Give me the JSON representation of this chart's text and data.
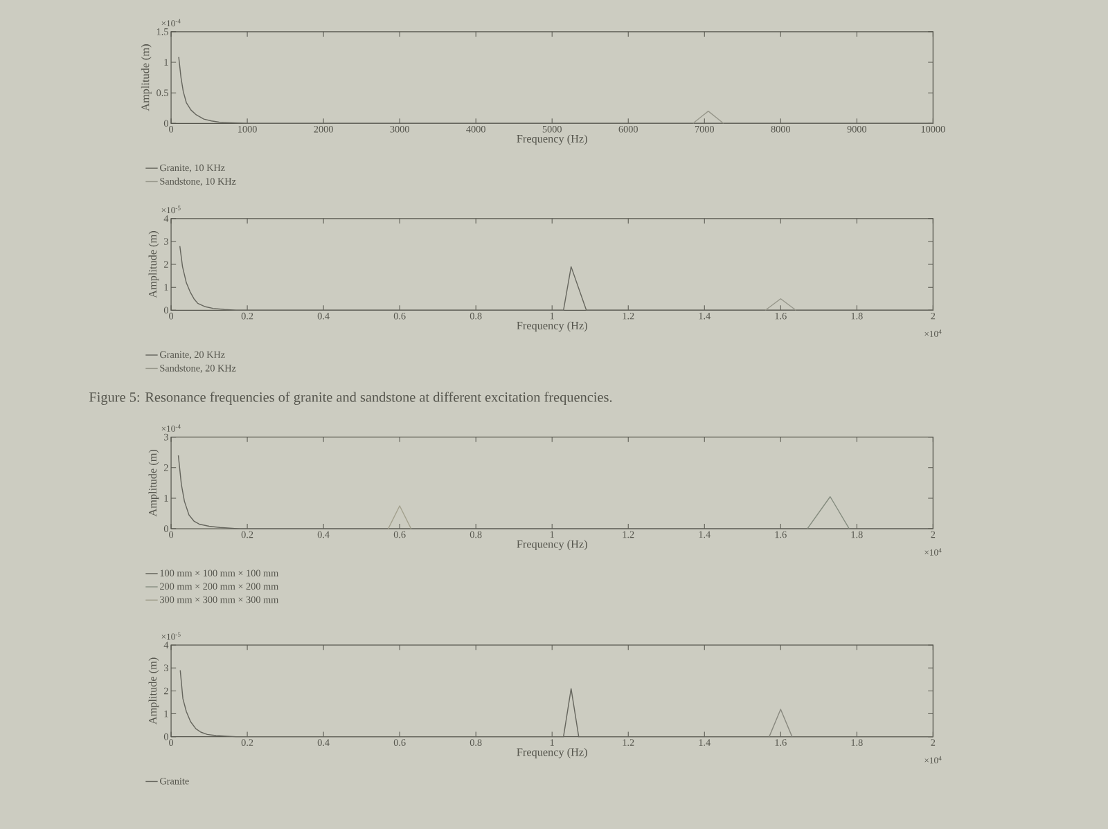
{
  "chart_data": [
    {
      "type": "line",
      "xlabel": "Frequency (Hz)",
      "ylabel": "Amplitude (m)",
      "xlim": [
        0,
        10000
      ],
      "xticks": [
        0,
        1000,
        2000,
        3000,
        4000,
        5000,
        6000,
        7000,
        8000,
        9000,
        10000
      ],
      "ylim": [
        0,
        1.5
      ],
      "yticks": [
        0,
        0.5,
        1,
        1.5
      ],
      "legend": "bottom left",
      "annotations": [
        "×10$^{-4}$"
      ],
      "series": [
        {
          "name": "Granite, 10 KHz",
          "color": "#66665e",
          "x": [
            100,
            130,
            160,
            200,
            260,
            330,
            430,
            530,
            630,
            800,
            1000,
            10000
          ],
          "values": [
            1.09,
            0.75,
            0.52,
            0.34,
            0.22,
            0.14,
            0.07,
            0.04,
            0.02,
            0.01,
            0,
            0
          ]
        },
        {
          "name": "Sandstone, 10 KHz",
          "color": "#97978b",
          "x": [
            6850,
            7050,
            7250
          ],
          "values": [
            0,
            0.2,
            0
          ]
        }
      ]
    },
    {
      "type": "line",
      "xlabel": "Frequency (Hz)",
      "ylabel": "Amplitude (m)",
      "xlim": [
        0,
        2
      ],
      "xticks": [
        0,
        0.2,
        0.4,
        0.6,
        0.8,
        1,
        1.2,
        1.4,
        1.6,
        1.8,
        2
      ],
      "ylim": [
        0,
        4
      ],
      "yticks": [
        0,
        1,
        2,
        3,
        4
      ],
      "legend": "bottom left",
      "annotations": [
        "×10$^{-5}$",
        "×10$^{4}$",
        "Figure 5: Resonance frequencies of granite and sandstone at different excitation frequencies."
      ],
      "series": [
        {
          "name": "Granite, 20 KHz",
          "color": "#66665e",
          "x": [
            0.023,
            0.03,
            0.04,
            0.05,
            0.06,
            0.07,
            0.09,
            0.11,
            0.14,
            0.17,
            1.03,
            1.05,
            1.09,
            2
          ],
          "values": [
            2.8,
            1.9,
            1.2,
            0.8,
            0.5,
            0.3,
            0.15,
            0.08,
            0.03,
            0,
            0,
            1.9,
            0,
            0
          ]
        },
        {
          "name": "Sandstone, 20 KHz",
          "color": "#97978b",
          "x": [
            1.56,
            1.6,
            1.64
          ],
          "values": [
            0,
            0.5,
            0
          ]
        }
      ]
    },
    {
      "type": "line",
      "xlabel": "Frequency (Hz)",
      "ylabel": "Amplitude (m)",
      "xlim": [
        0,
        2
      ],
      "xticks": [
        0,
        0.2,
        0.4,
        0.6,
        0.8,
        1,
        1.2,
        1.4,
        1.6,
        1.8,
        2
      ],
      "ylim": [
        0,
        3
      ],
      "yticks": [
        0,
        1,
        2,
        3
      ],
      "legend": "bottom left",
      "annotations": [
        "×10$^{-4}$",
        "×10$^{4}$"
      ],
      "series": [
        {
          "name": "100 mm × 100 mm × 100 mm",
          "color": "#66665e",
          "x": [
            0.019,
            0.027,
            0.035,
            0.047,
            0.06,
            0.074,
            0.1,
            0.128,
            0.18,
            2
          ],
          "values": [
            2.4,
            1.45,
            0.9,
            0.45,
            0.25,
            0.15,
            0.08,
            0.04,
            0,
            0
          ]
        },
        {
          "name": "200 mm × 200 mm × 200 mm",
          "color": "#858c7f",
          "x": [
            1.67,
            1.73,
            1.78
          ],
          "values": [
            0,
            1.05,
            0
          ]
        },
        {
          "name": "300 mm × 300 mm × 300 mm",
          "color": "#a3a18e",
          "x": [
            0.57,
            0.6,
            0.63
          ],
          "values": [
            0,
            0.75,
            0
          ]
        }
      ]
    },
    {
      "type": "line",
      "xlabel": "Frequency (Hz)",
      "ylabel": "Amplitude (m)",
      "xlim": [
        0,
        2
      ],
      "xticks": [
        0,
        0.2,
        0.4,
        0.6,
        0.8,
        1,
        1.2,
        1.4,
        1.6,
        1.8,
        2
      ],
      "ylim": [
        0,
        4
      ],
      "yticks": [
        0,
        1,
        2,
        3,
        4
      ],
      "legend": "bottom left",
      "annotations": [
        "×10$^{-5}$",
        "×10$^{4}$"
      ],
      "series": [
        {
          "name": "Granite",
          "color": "#66665e",
          "x": [
            0.024,
            0.031,
            0.04,
            0.051,
            0.065,
            0.078,
            0.095,
            0.118,
            0.17,
            1.03,
            1.05,
            1.07,
            2
          ],
          "values": [
            2.9,
            1.66,
            1.1,
            0.66,
            0.35,
            0.2,
            0.1,
            0.05,
            0,
            0,
            2.1,
            0,
            0
          ]
        },
        {
          "color": "#8a8a80",
          "x": [
            1.57,
            1.6,
            1.63
          ],
          "values": [
            0,
            1.2,
            0
          ]
        }
      ]
    }
  ]
}
